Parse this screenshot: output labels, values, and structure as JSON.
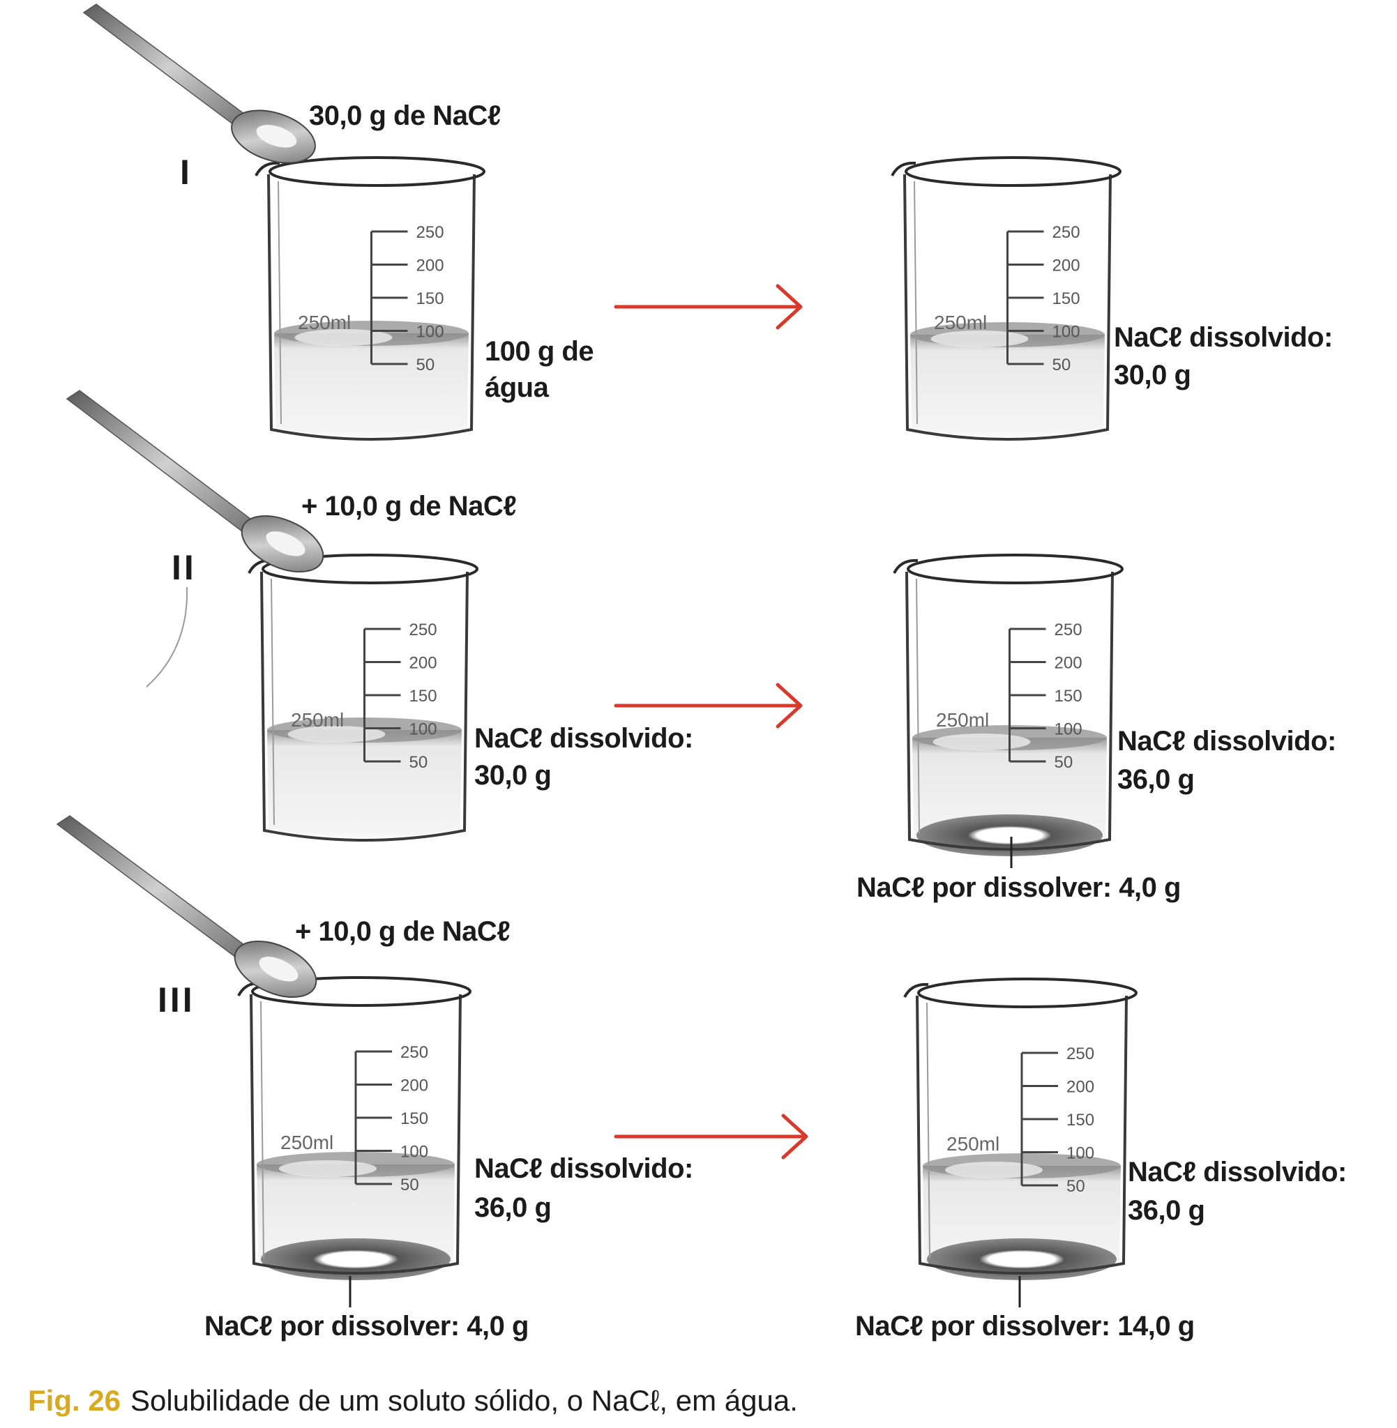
{
  "rows": [
    {
      "numeral": "I",
      "add_label": "30,0 g de NaCℓ",
      "water_label": [
        "100 g de",
        "água"
      ],
      "left_beaker": {
        "volume_mark": "250ml",
        "scale": [
          "250",
          "200",
          "150",
          "100",
          "50"
        ]
      },
      "right_beaker": {
        "volume_mark": "250ml",
        "scale": [
          "250",
          "200",
          "150",
          "100",
          "50"
        ]
      },
      "right_dissolved": [
        "NaCℓ dissolvido:",
        "30,0 g"
      ]
    },
    {
      "numeral": "II",
      "add_label": "+ 10,0 g de NaCℓ",
      "left_dissolved": [
        "NaCℓ dissolvido:",
        "30,0 g"
      ],
      "left_beaker": {
        "volume_mark": "250ml",
        "scale": [
          "250",
          "200",
          "150",
          "100",
          "50"
        ]
      },
      "right_beaker": {
        "volume_mark": "250ml",
        "scale": [
          "250",
          "200",
          "150",
          "100",
          "50"
        ]
      },
      "right_dissolved": [
        "NaCℓ dissolvido:",
        "36,0 g"
      ],
      "right_undissolved": "NaCℓ por dissolver: 4,0 g"
    },
    {
      "numeral": "III",
      "add_label": "+ 10,0 g de NaCℓ",
      "left_dissolved": [
        "NaCℓ dissolvido:",
        "36,0 g"
      ],
      "left_undissolved": "NaCℓ por dissolver: 4,0 g",
      "left_beaker": {
        "volume_mark": "250ml",
        "scale": [
          "250",
          "200",
          "150",
          "100",
          "50"
        ]
      },
      "right_beaker": {
        "volume_mark": "250ml",
        "scale": [
          "250",
          "200",
          "150",
          "100",
          "50"
        ]
      },
      "right_dissolved": [
        "NaCℓ dissolvido:",
        "36,0 g"
      ],
      "right_undissolved": "NaCℓ por dissolver: 14,0 g"
    }
  ],
  "caption": {
    "fig_label": "Fig. 26",
    "text": "Solubilidade de um soluto sólido, o NaCℓ, em água."
  },
  "colors": {
    "arrow": "#d8392b",
    "fig_label": "#d9a91f",
    "text": "#1b1b1b",
    "glass": "#3a3a3a"
  },
  "icons": [
    "spoon-icon",
    "beaker-icon",
    "arrow-right-icon"
  ]
}
